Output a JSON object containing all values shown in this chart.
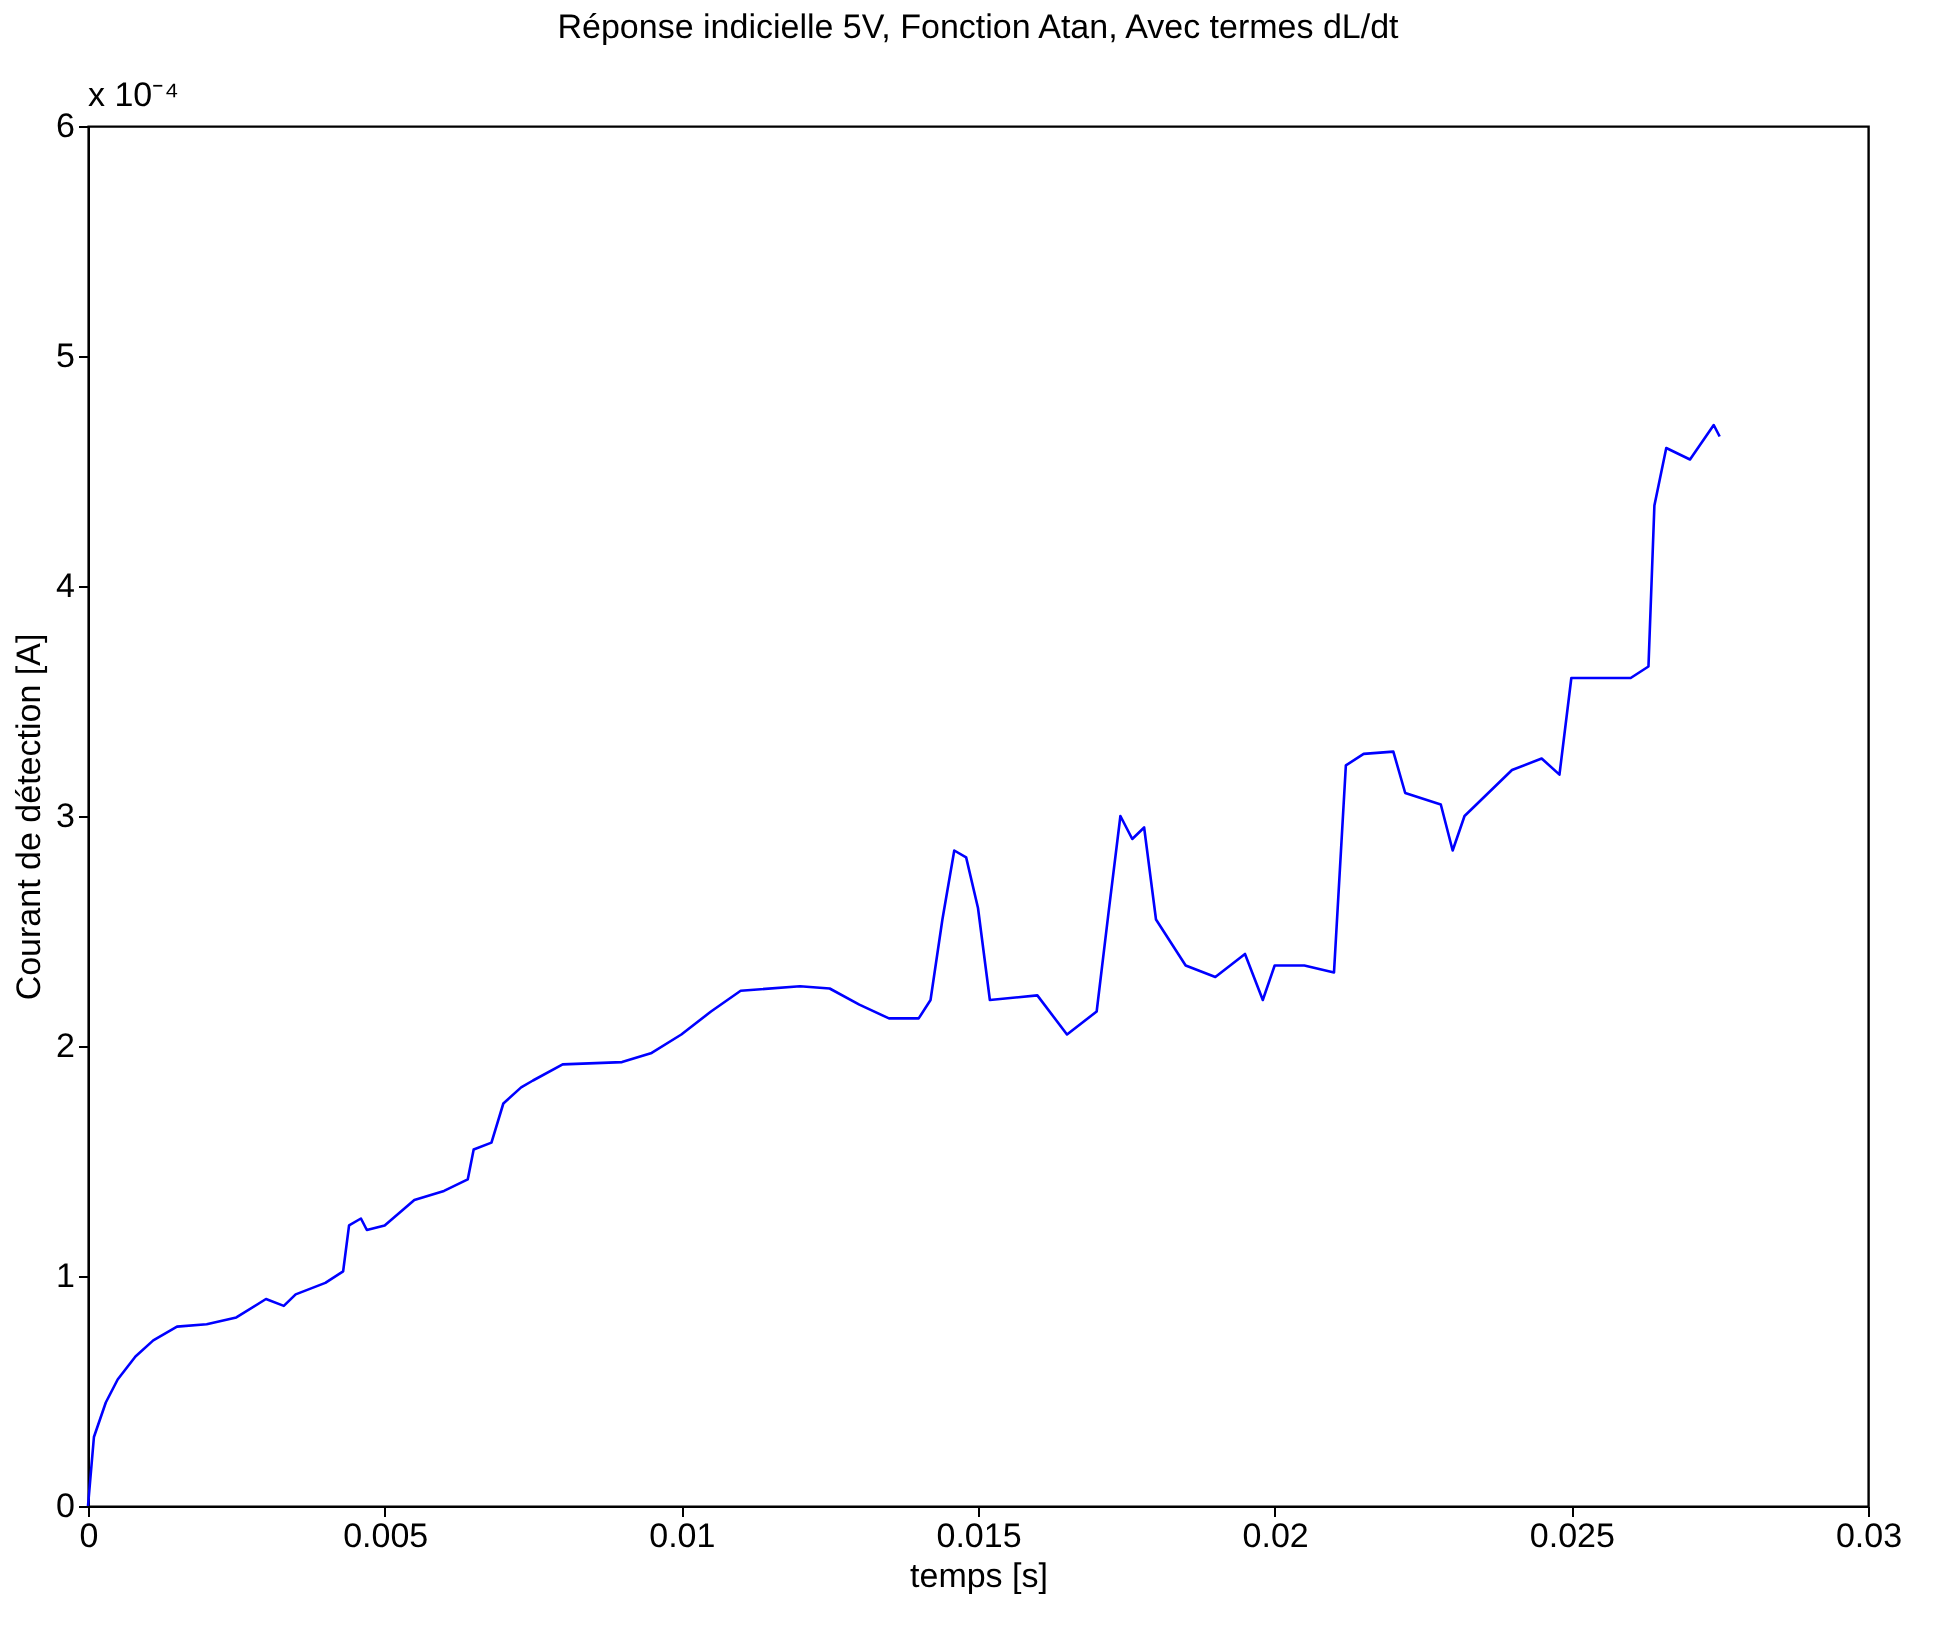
{
  "chart_data": {
    "type": "line",
    "title": "Réponse indicielle 5V,  Fonction Atan, Avec termes dL/dt",
    "xlabel": "temps [s]",
    "ylabel": "Courant de détection [A]",
    "annotations": [
      "x 10⁻⁴"
    ],
    "x": [
      0,
      0.0001,
      0.0003,
      0.0005,
      0.0008,
      0.0011,
      0.0015,
      0.002,
      0.0025,
      0.003,
      0.0033,
      0.0035,
      0.004,
      0.0043,
      0.0044,
      0.0046,
      0.0047,
      0.005,
      0.0055,
      0.006,
      0.0064,
      0.0065,
      0.0068,
      0.007,
      0.0073,
      0.0075,
      0.008,
      0.009,
      0.0095,
      0.01,
      0.0105,
      0.011,
      0.012,
      0.0125,
      0.013,
      0.0135,
      0.014,
      0.0142,
      0.0144,
      0.0146,
      0.0148,
      0.015,
      0.0152,
      0.016,
      0.0165,
      0.017,
      0.0172,
      0.0174,
      0.0176,
      0.0178,
      0.018,
      0.0185,
      0.019,
      0.0195,
      0.0198,
      0.02,
      0.0205,
      0.021,
      0.0212,
      0.0215,
      0.022,
      0.0222,
      0.0228,
      0.023,
      0.0232,
      0.024,
      0.0245,
      0.0248,
      0.025,
      0.026,
      0.0263,
      0.0264,
      0.0266,
      0.027,
      0.0274,
      0.0275
    ],
    "series": [
      {
        "color": "#0000ff",
        "values": [
          0,
          0.3,
          0.45,
          0.55,
          0.65,
          0.72,
          0.78,
          0.79,
          0.82,
          0.9,
          0.87,
          0.92,
          0.97,
          1.02,
          1.22,
          1.25,
          1.2,
          1.22,
          1.33,
          1.37,
          1.42,
          1.55,
          1.58,
          1.75,
          1.82,
          1.85,
          1.92,
          1.93,
          1.97,
          2.05,
          2.15,
          2.24,
          2.26,
          2.25,
          2.18,
          2.12,
          2.12,
          2.2,
          2.55,
          2.85,
          2.82,
          2.6,
          2.2,
          2.22,
          2.05,
          2.15,
          2.58,
          3.0,
          2.9,
          2.95,
          2.55,
          2.35,
          2.3,
          2.4,
          2.2,
          2.35,
          2.35,
          2.32,
          3.22,
          3.27,
          3.28,
          3.1,
          3.05,
          2.85,
          3.0,
          3.2,
          3.25,
          3.18,
          3.6,
          3.6,
          3.65,
          4.35,
          4.6,
          4.55,
          4.7,
          4.65
        ]
      }
    ],
    "xlim": [
      0,
      0.03
    ],
    "xticks": [
      0,
      0.005,
      0.01,
      0.015,
      0.02,
      0.025,
      0.03
    ],
    "ylim": [
      0,
      6
    ],
    "yticks": [
      0,
      1,
      2,
      3,
      4,
      5,
      6
    ],
    "grid": false,
    "legend": false
  }
}
